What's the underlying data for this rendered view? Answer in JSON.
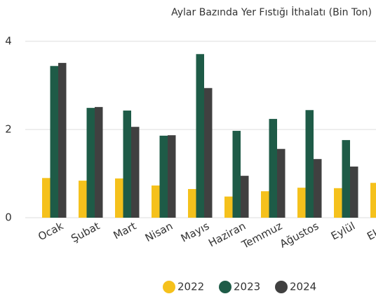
{
  "chart_data": {
    "type": "bar",
    "title": "Aylar Bazında Yer Fıstığı İthalatı (Bin Ton)",
    "categories": [
      "Ocak",
      "Şubat",
      "Mart",
      "Nisan",
      "Mayıs",
      "Haziran",
      "Temmuz",
      "Ağustos",
      "Eylül",
      "Ekim"
    ],
    "series": [
      {
        "name": "2022",
        "color": "#f5c11c",
        "values": [
          0.9,
          0.84,
          0.89,
          0.73,
          0.65,
          0.48,
          0.6,
          0.68,
          0.67,
          0.79
        ]
      },
      {
        "name": "2023",
        "color": "#1e5b47",
        "values": [
          3.44,
          2.49,
          2.43,
          1.86,
          3.71,
          1.97,
          2.24,
          2.44,
          1.76,
          null
        ]
      },
      {
        "name": "2024",
        "color": "#404040",
        "values": [
          3.51,
          2.51,
          2.06,
          1.87,
          2.94,
          0.95,
          1.56,
          1.33,
          1.16,
          null
        ]
      }
    ],
    "ylim": [
      0,
      4
    ],
    "yticks": [
      0,
      2,
      4
    ],
    "grid": true,
    "legend": "bottom"
  }
}
